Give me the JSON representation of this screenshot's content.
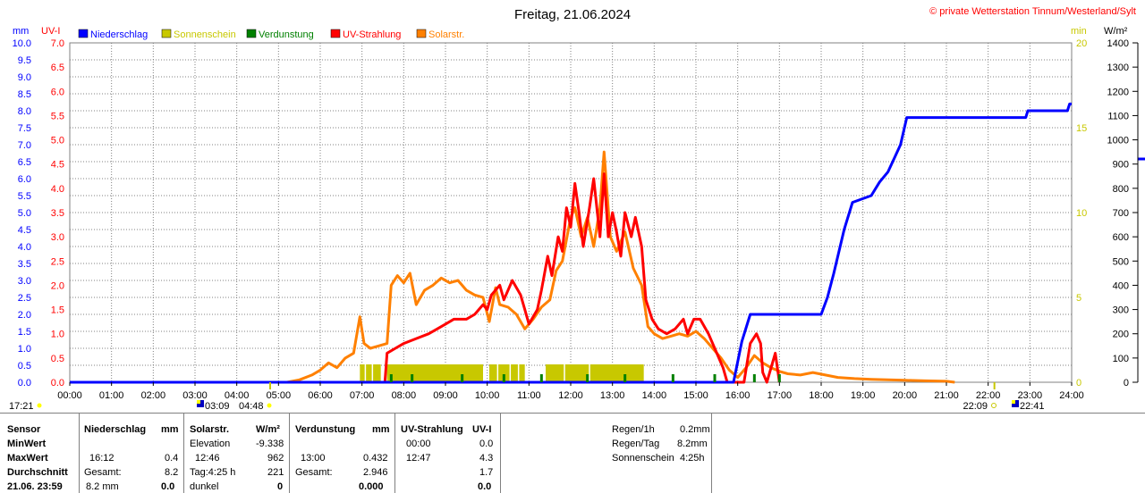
{
  "title": "Freitag, 21.06.2024",
  "copyright": "© private Wetterstation Tinnum/Westerland/Sylt",
  "colors": {
    "niederschlag": "#0000ff",
    "sonnenschein": "#c8c800",
    "verdunstung": "#008000",
    "uv": "#ff0000",
    "solar": "#ff8000",
    "grid": "#808080"
  },
  "axis_units": {
    "left1": "mm",
    "left2": "UV-I",
    "right1": "min",
    "right2": "W/m²"
  },
  "legend": [
    {
      "label": "Niederschlag",
      "color": "#0000ff"
    },
    {
      "label": "Sonnenschein",
      "color": "#c8c800"
    },
    {
      "label": "Verdunstung",
      "color": "#008000"
    },
    {
      "label": "UV-Strahlung",
      "color": "#ff0000"
    },
    {
      "label": "Solarstr.",
      "color": "#ff8000"
    }
  ],
  "chart_data": {
    "type": "line",
    "title": "Freitag, 21.06.2024",
    "x_ticks": [
      "00:00",
      "01:00",
      "02:00",
      "03:00",
      "04:00",
      "05:00",
      "06:00",
      "07:00",
      "08:00",
      "09:00",
      "10:00",
      "11:00",
      "12:00",
      "13:00",
      "14:00",
      "15:00",
      "16:00",
      "17:00",
      "18:00",
      "19:00",
      "20:00",
      "21:00",
      "22:00",
      "23:00",
      "24:00"
    ],
    "y_mm_ticks": [
      "10.0",
      "9.5",
      "9.0",
      "8.5",
      "8.0",
      "7.5",
      "7.0",
      "6.5",
      "6.0",
      "5.5",
      "5.0",
      "4.5",
      "4.0",
      "3.5",
      "3.0",
      "2.5",
      "2.0",
      "1.5",
      "1.0",
      "0.5",
      "0.0"
    ],
    "y_uv_ticks": [
      "7.0",
      "6.5",
      "6.0",
      "5.5",
      "5.0",
      "4.5",
      "4.0",
      "3.5",
      "3.0",
      "2.5",
      "2.0",
      "1.5",
      "1.0",
      "0.5",
      "0.0"
    ],
    "y_min_ticks": [
      "20",
      "15",
      "10",
      "5",
      "0"
    ],
    "y_wm2_ticks": [
      "1400",
      "1300",
      "1200",
      "1100",
      "1000",
      "900",
      "800",
      "700",
      "600",
      "500",
      "400",
      "300",
      "200",
      "100",
      "0"
    ],
    "ylim_mm": [
      0,
      10
    ],
    "ylim_uv": [
      0,
      7
    ],
    "ylim_min": [
      0,
      20
    ],
    "ylim_wm2": [
      0,
      1400
    ],
    "series": [
      {
        "name": "Niederschlag",
        "unit": "mm",
        "axis": "mm",
        "points": [
          [
            0,
            0
          ],
          [
            15.9,
            0
          ],
          [
            16.1,
            1.2
          ],
          [
            16.3,
            2.0
          ],
          [
            17.5,
            2.0
          ],
          [
            18.0,
            2.0
          ],
          [
            18.15,
            2.5
          ],
          [
            18.3,
            3.2
          ],
          [
            18.55,
            4.5
          ],
          [
            18.75,
            5.3
          ],
          [
            19.2,
            5.5
          ],
          [
            19.4,
            5.9
          ],
          [
            19.6,
            6.2
          ],
          [
            19.75,
            6.6
          ],
          [
            19.9,
            7.0
          ],
          [
            20.05,
            7.8
          ],
          [
            21.0,
            7.8
          ],
          [
            22.0,
            7.8
          ],
          [
            22.9,
            7.8
          ],
          [
            22.95,
            8.0
          ],
          [
            23.9,
            8.0
          ],
          [
            23.95,
            8.2
          ],
          [
            24.0,
            8.2
          ]
        ]
      },
      {
        "name": "UV-Strahlung",
        "unit": "UV-I",
        "axis": "uv",
        "points": [
          [
            7.55,
            0
          ],
          [
            7.6,
            0.6
          ],
          [
            7.8,
            0.7
          ],
          [
            8.0,
            0.8
          ],
          [
            8.3,
            0.9
          ],
          [
            8.6,
            1.0
          ],
          [
            8.8,
            1.1
          ],
          [
            9.0,
            1.2
          ],
          [
            9.2,
            1.3
          ],
          [
            9.5,
            1.3
          ],
          [
            9.7,
            1.4
          ],
          [
            9.9,
            1.6
          ],
          [
            10.0,
            1.5
          ],
          [
            10.1,
            1.8
          ],
          [
            10.3,
            2.0
          ],
          [
            10.4,
            1.7
          ],
          [
            10.6,
            2.1
          ],
          [
            10.8,
            1.8
          ],
          [
            10.9,
            1.5
          ],
          [
            11.0,
            1.2
          ],
          [
            11.2,
            1.5
          ],
          [
            11.3,
            1.9
          ],
          [
            11.45,
            2.6
          ],
          [
            11.55,
            2.2
          ],
          [
            11.7,
            3.0
          ],
          [
            11.8,
            2.7
          ],
          [
            11.9,
            3.6
          ],
          [
            12.0,
            3.2
          ],
          [
            12.1,
            4.1
          ],
          [
            12.2,
            3.5
          ],
          [
            12.3,
            2.8
          ],
          [
            12.45,
            3.6
          ],
          [
            12.55,
            4.2
          ],
          [
            12.7,
            3.0
          ],
          [
            12.8,
            4.3
          ],
          [
            12.9,
            3.0
          ],
          [
            13.0,
            3.5
          ],
          [
            13.1,
            3.1
          ],
          [
            13.2,
            2.6
          ],
          [
            13.3,
            3.5
          ],
          [
            13.45,
            3.0
          ],
          [
            13.55,
            3.4
          ],
          [
            13.7,
            2.8
          ],
          [
            13.8,
            1.7
          ],
          [
            13.95,
            1.3
          ],
          [
            14.1,
            1.1
          ],
          [
            14.3,
            1.0
          ],
          [
            14.5,
            1.1
          ],
          [
            14.7,
            1.3
          ],
          [
            14.8,
            1.0
          ],
          [
            14.95,
            1.3
          ],
          [
            15.1,
            1.3
          ],
          [
            15.3,
            1.0
          ],
          [
            15.5,
            0.6
          ],
          [
            15.65,
            0.3
          ],
          [
            15.75,
            0
          ],
          [
            16.15,
            0
          ],
          [
            16.3,
            0.8
          ],
          [
            16.45,
            1.0
          ],
          [
            16.55,
            0.8
          ],
          [
            16.6,
            0.2
          ],
          [
            16.7,
            0
          ],
          [
            16.9,
            0.6
          ],
          [
            17.0,
            0
          ]
        ]
      },
      {
        "name": "Solarstr.",
        "unit": "W/m²",
        "axis": "wm2",
        "points": [
          [
            5.2,
            0
          ],
          [
            5.5,
            10
          ],
          [
            5.8,
            30
          ],
          [
            6.0,
            50
          ],
          [
            6.2,
            80
          ],
          [
            6.4,
            60
          ],
          [
            6.6,
            100
          ],
          [
            6.8,
            120
          ],
          [
            6.95,
            270
          ],
          [
            7.05,
            160
          ],
          [
            7.2,
            140
          ],
          [
            7.4,
            150
          ],
          [
            7.6,
            160
          ],
          [
            7.7,
            400
          ],
          [
            7.85,
            440
          ],
          [
            8.0,
            410
          ],
          [
            8.15,
            450
          ],
          [
            8.3,
            320
          ],
          [
            8.5,
            380
          ],
          [
            8.7,
            400
          ],
          [
            8.9,
            430
          ],
          [
            9.1,
            410
          ],
          [
            9.3,
            420
          ],
          [
            9.5,
            380
          ],
          [
            9.7,
            360
          ],
          [
            9.9,
            350
          ],
          [
            10.05,
            250
          ],
          [
            10.2,
            390
          ],
          [
            10.3,
            320
          ],
          [
            10.5,
            310
          ],
          [
            10.7,
            280
          ],
          [
            10.9,
            220
          ],
          [
            11.1,
            260
          ],
          [
            11.3,
            310
          ],
          [
            11.5,
            340
          ],
          [
            11.65,
            460
          ],
          [
            11.8,
            500
          ],
          [
            12.0,
            680
          ],
          [
            12.1,
            720
          ],
          [
            12.25,
            600
          ],
          [
            12.4,
            680
          ],
          [
            12.55,
            560
          ],
          [
            12.7,
            720
          ],
          [
            12.8,
            950
          ],
          [
            12.95,
            600
          ],
          [
            13.1,
            540
          ],
          [
            13.3,
            620
          ],
          [
            13.5,
            470
          ],
          [
            13.7,
            400
          ],
          [
            13.85,
            230
          ],
          [
            14.0,
            200
          ],
          [
            14.2,
            180
          ],
          [
            14.4,
            190
          ],
          [
            14.6,
            200
          ],
          [
            14.8,
            190
          ],
          [
            15.0,
            210
          ],
          [
            15.2,
            180
          ],
          [
            15.4,
            140
          ],
          [
            15.6,
            100
          ],
          [
            15.8,
            50
          ],
          [
            16.0,
            20
          ],
          [
            16.2,
            60
          ],
          [
            16.4,
            110
          ],
          [
            16.6,
            80
          ],
          [
            16.8,
            60
          ],
          [
            17.0,
            45
          ],
          [
            17.2,
            35
          ],
          [
            17.5,
            30
          ],
          [
            17.8,
            40
          ],
          [
            18.1,
            30
          ],
          [
            18.4,
            20
          ],
          [
            18.8,
            15
          ],
          [
            19.2,
            12
          ],
          [
            19.6,
            10
          ],
          [
            20.0,
            8
          ],
          [
            20.5,
            6
          ],
          [
            21.0,
            4
          ],
          [
            21.2,
            0
          ]
        ]
      }
    ],
    "sonnenschein_bars": [
      [
        6.95,
        7.45
      ],
      [
        7.6,
        9.9
      ],
      [
        10.05,
        10.9
      ],
      [
        11.4,
        13.75
      ]
    ],
    "verdunstung_ticks": [
      7.7,
      8.2,
      9.4,
      10.4,
      11.3,
      12.4,
      13.3,
      14.45,
      15.45,
      16.4,
      17.0
    ]
  },
  "time_markers": {
    "left": "17:21",
    "mid1": "03:09",
    "mid2": "04:48",
    "right1": "22:09",
    "right2": "22:41"
  },
  "table": {
    "col_sensor": [
      "Sensor",
      "MinWert",
      "MaxWert",
      "Durchschnitt",
      "21.06. 23:59"
    ],
    "niederschlag": {
      "header": "Niederschlag",
      "unit": "mm",
      "max_time": "16:12",
      "max_val": "0.4",
      "gesamt_label": "Gesamt:",
      "gesamt_val": "8.2",
      "last_label": "8.2 mm",
      "last_val": "0.0"
    },
    "solar": {
      "header": "Solarstr.",
      "unit": "W/m²",
      "elev_label": "Elevation",
      "elev_val": "-9.338",
      "max_time": "12:46",
      "max_val": "962",
      "tag_label": "Tag:4:25 h",
      "tag_val": "221",
      "dunkel_label": "dunkel",
      "dunkel_val": "0"
    },
    "verdunstung": {
      "header": "Verdunstung",
      "unit": "mm",
      "max_time": "13:00",
      "max_val": "0.432",
      "gesamt_label": "Gesamt:",
      "gesamt_val": "2.946",
      "last_val": "0.000"
    },
    "uv": {
      "header": "UV-Strahlung",
      "unit": "UV-I",
      "min_time": "00:00",
      "min_val": "0.0",
      "max_time": "12:47",
      "max_val": "4.3",
      "avg_val": "1.7",
      "last_val": "0.0"
    },
    "summary": [
      {
        "label": "Regen/1h",
        "value": "0.2mm"
      },
      {
        "label": "Regen/Tag",
        "value": "8.2mm"
      },
      {
        "label": "Sonnenschein",
        "value": "4:25h"
      }
    ]
  }
}
